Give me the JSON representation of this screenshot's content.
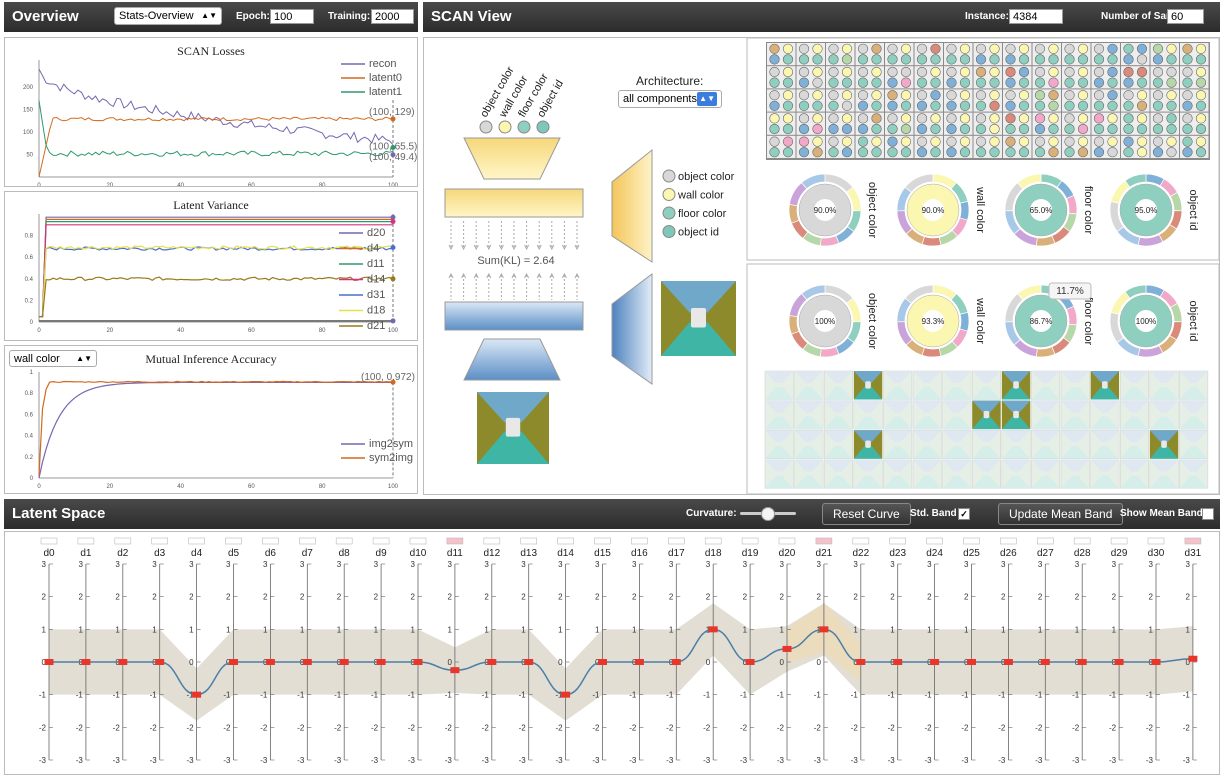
{
  "overview": {
    "title": "Overview",
    "view_select": "Stats-Overview",
    "epoch_label": "Epoch:",
    "epoch_value": "100",
    "training_label": "Training:",
    "training_value": "2000"
  },
  "scan_view": {
    "title": "SCAN View",
    "instance_label": "Instance:",
    "instance_value": "4384",
    "samples_label": "Number of Samples:",
    "samples_value": "60",
    "architecture_label": "Architecture:",
    "architecture_select": "all components",
    "sum_kl": "Sum(KL) = 2.64",
    "attributes": [
      "object color",
      "wall color",
      "floor color",
      "object id"
    ],
    "attribute_colors": [
      "#d8d8d8",
      "#fbf6b0",
      "#8fcfbf",
      "#7fc7b8"
    ],
    "top_pies": [
      {
        "label": "object color",
        "value": "90.0%"
      },
      {
        "label": "wall color",
        "value": "90.0%"
      },
      {
        "label": "floor color",
        "value": "65.0%"
      },
      {
        "label": "object id",
        "value": "95.0%"
      }
    ],
    "bottom_pies": [
      {
        "label": "object color",
        "value": "100%"
      },
      {
        "label": "wall color",
        "value": "93.3%"
      },
      {
        "label": "floor color",
        "value": "86.7%",
        "tooltip": "11.7%"
      },
      {
        "label": "object id",
        "value": "100%"
      }
    ]
  },
  "losses_chart": {
    "title": "SCAN Losses",
    "legend": [
      "recon",
      "latent0",
      "latent1"
    ],
    "colors": [
      "#7767b0",
      "#d2691e",
      "#2e9a6b"
    ],
    "yticks": [
      "200",
      "150",
      "100",
      "50"
    ],
    "xticks": [
      "0",
      "20",
      "40",
      "60",
      "80",
      "100"
    ],
    "annotations": [
      "(100, 129)",
      "(100, 65.5)",
      "(100, 49.4)"
    ]
  },
  "variance_chart": {
    "title": "Latent Variance",
    "legend": [
      "d20",
      "d4",
      "d11",
      "d14",
      "d31",
      "d18",
      "d21"
    ],
    "colors": [
      "#7767b0",
      "#d2691e",
      "#2e9a6b",
      "#d63384",
      "#4a6fd0",
      "#e8e04a",
      "#9a7a1e"
    ],
    "yticks": [
      "0.8",
      "0.6",
      "0.4",
      "0.2",
      "0"
    ],
    "xticks": [
      "0",
      "20",
      "40",
      "60",
      "80",
      "100"
    ]
  },
  "inference_chart": {
    "title": "Mutual Inference Accuracy",
    "select": "wall color",
    "legend": [
      "img2sym",
      "sym2img"
    ],
    "colors": [
      "#7767b0",
      "#d2691e"
    ],
    "yticks": [
      "1",
      "0.8",
      "0.6",
      "0.4",
      "0.2",
      "0"
    ],
    "xticks": [
      "0",
      "20",
      "40",
      "60",
      "80",
      "100"
    ],
    "annotations": [
      "(100, 0.972)"
    ]
  },
  "latent_space": {
    "title": "Latent Space",
    "curvature_label": "Curvature:",
    "reset_button": "Reset Curve",
    "std_band_label": "Std. Band",
    "update_button": "Update Mean Band",
    "show_mean_label": "Show Mean Band",
    "axis_ticks": [
      "3",
      "2",
      "1",
      "0",
      "-1",
      "-2",
      "-3"
    ],
    "dims": [
      "d0",
      "d1",
      "d2",
      "d3",
      "d4",
      "d5",
      "d6",
      "d7",
      "d8",
      "d9",
      "d10",
      "d11",
      "d12",
      "d13",
      "d14",
      "d15",
      "d16",
      "d17",
      "d18",
      "d19",
      "d20",
      "d21",
      "d22",
      "d23",
      "d24",
      "d25",
      "d26",
      "d27",
      "d28",
      "d29",
      "d30",
      "d31"
    ],
    "values": [
      0,
      0,
      0,
      0,
      -1,
      0,
      0,
      0,
      0,
      0,
      0,
      -0.25,
      0,
      0,
      -1,
      0,
      0,
      0,
      1,
      0,
      0.4,
      1,
      0,
      0,
      0,
      0,
      0,
      0,
      0,
      0,
      0,
      0.1
    ],
    "highlighted_dims": [
      "d11",
      "d21",
      "d31"
    ]
  }
}
